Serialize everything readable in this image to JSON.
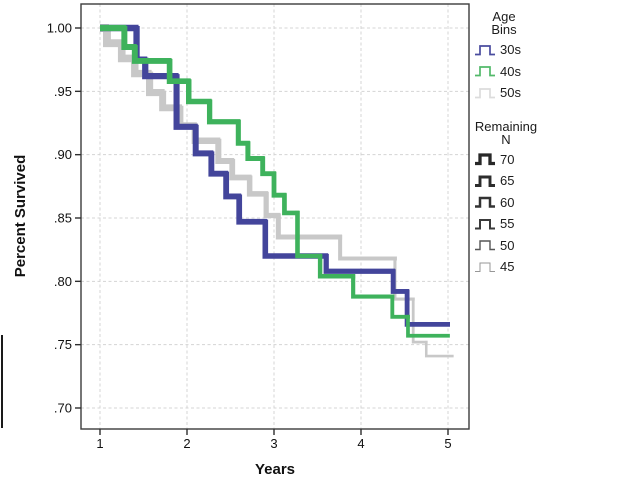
{
  "figure": {
    "y_axis": {
      "title": "Percent Survived",
      "tick_labels": [
        "1.00",
        ".95",
        ".90",
        ".85",
        ".80",
        ".75",
        ".70"
      ],
      "tick_values": [
        1.0,
        0.95,
        0.9,
        0.85,
        0.8,
        0.75,
        0.7
      ]
    },
    "x_axis": {
      "title": "Years",
      "tick_labels": [
        "1",
        "2",
        "3",
        "4",
        "5"
      ],
      "tick_values": [
        1,
        2,
        3,
        4,
        5
      ]
    },
    "legend_age": {
      "title_lines": [
        "Age",
        "Bins"
      ],
      "items": [
        {
          "label": "30s",
          "color": "#4A4C9F",
          "width": 1.7
        },
        {
          "label": "40s",
          "color": "#52B96A",
          "width": 1.7
        },
        {
          "label": "50s",
          "color": "#DCDCDC",
          "width": 1.7
        }
      ]
    },
    "legend_n": {
      "title_lines": [
        "Remaining",
        "N"
      ],
      "items": [
        {
          "label": "70",
          "color": "#282828",
          "width": 3.3
        },
        {
          "label": "65",
          "color": "#2D2D2D",
          "width": 2.9
        },
        {
          "label": "60",
          "color": "#333333",
          "width": 2.5
        },
        {
          "label": "55",
          "color": "#3A3A3A",
          "width": 2.0
        },
        {
          "label": "50",
          "color": "#565656",
          "width": 1.4
        },
        {
          "label": "45",
          "color": "#979797",
          "width": 1.0
        }
      ]
    },
    "colors": {
      "grid": "#D4D4D4",
      "border": "#3C3C3C",
      "tick": "#2E2E2E",
      "text": "#111111"
    }
  },
  "chart_data": {
    "type": "line",
    "subtype": "step-survival",
    "title": "",
    "xlabel": "Years",
    "ylabel": "Percent Survived",
    "xlim": [
      0.78,
      5.24
    ],
    "ylim": [
      0.683,
      1.019
    ],
    "x_ticks": [
      1,
      2,
      3,
      4,
      5
    ],
    "y_ticks": [
      0.7,
      0.75,
      0.8,
      0.85,
      0.9,
      0.95,
      1.0
    ],
    "grid": true,
    "legend_position": "right",
    "size_legend": {
      "title": "Remaining N",
      "values": [
        70,
        65,
        60,
        55,
        50,
        45
      ]
    },
    "series": [
      {
        "name": "30s",
        "color": "#43459B",
        "width_start": 6.5,
        "width_end": 4.6,
        "points": [
          [
            1.0,
            1.0
          ],
          [
            1.42,
            0.975
          ],
          [
            1.52,
            0.962
          ],
          [
            1.88,
            0.922
          ],
          [
            2.1,
            0.901
          ],
          [
            2.28,
            0.885
          ],
          [
            2.45,
            0.867
          ],
          [
            2.6,
            0.847
          ],
          [
            2.9,
            0.82
          ],
          [
            3.6,
            0.808
          ],
          [
            4.37,
            0.792
          ],
          [
            4.53,
            0.766
          ],
          [
            5.0,
            0.766
          ]
        ]
      },
      {
        "name": "40s",
        "color": "#3EB25C",
        "width_start": 6.2,
        "width_end": 3.4,
        "points": [
          [
            1.0,
            1.0
          ],
          [
            1.28,
            0.985
          ],
          [
            1.4,
            0.974
          ],
          [
            1.8,
            0.958
          ],
          [
            2.02,
            0.942
          ],
          [
            2.26,
            0.926
          ],
          [
            2.59,
            0.909
          ],
          [
            2.7,
            0.897
          ],
          [
            2.87,
            0.885
          ],
          [
            3.0,
            0.868
          ],
          [
            3.12,
            0.854
          ],
          [
            3.27,
            0.82
          ],
          [
            3.53,
            0.804
          ],
          [
            3.91,
            0.788
          ],
          [
            4.36,
            0.772
          ],
          [
            4.54,
            0.757
          ],
          [
            5.0,
            0.757
          ]
        ]
      },
      {
        "name": "50s",
        "color": "#C8C8C8",
        "width_start": 8.0,
        "width_end": 2.2,
        "points": [
          [
            1.0,
            1.0
          ],
          [
            1.08,
            0.988
          ],
          [
            1.25,
            0.976
          ],
          [
            1.4,
            0.964
          ],
          [
            1.57,
            0.949
          ],
          [
            1.72,
            0.937
          ],
          [
            1.92,
            0.923
          ],
          [
            2.09,
            0.911
          ],
          [
            2.36,
            0.895
          ],
          [
            2.52,
            0.882
          ],
          [
            2.72,
            0.869
          ],
          [
            2.91,
            0.852
          ],
          [
            3.05,
            0.835
          ],
          [
            3.76,
            0.818
          ],
          [
            4.39,
            0.786
          ],
          [
            4.6,
            0.752
          ],
          [
            4.75,
            0.741
          ],
          [
            5.05,
            0.741
          ]
        ]
      }
    ]
  }
}
